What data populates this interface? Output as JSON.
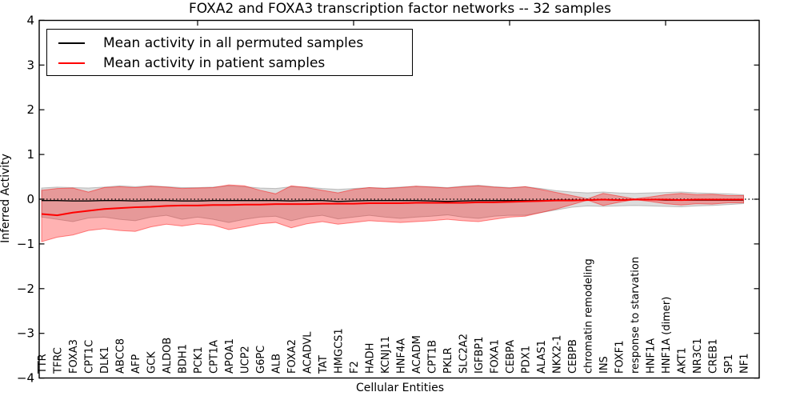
{
  "chart_data": {
    "type": "line",
    "title": "FOXA2 and FOXA3 transcription factor networks -- 32 samples",
    "xlabel": "Cellular Entities",
    "ylabel": "Inferred Activity",
    "ylim": [
      -4,
      4
    ],
    "yticks": [
      4,
      3,
      2,
      1,
      0,
      -1,
      -2,
      -3,
      -4
    ],
    "xticks_top_indices": [
      10,
      20,
      30,
      40
    ],
    "grid": false,
    "legend_position": "upper left",
    "zero_reference_line": {
      "y": 0,
      "style": "dotted",
      "color": "#000000"
    },
    "categories": [
      "TTR",
      "TFRC",
      "FOXA3",
      "CPT1C",
      "DLK1",
      "ABCC8",
      "AFP",
      "GCK",
      "ALDOB",
      "BDH1",
      "PCK1",
      "CPT1A",
      "APOA1",
      "UCP2",
      "G6PC",
      "ALB",
      "FOXA2",
      "ACADVL",
      "TAT",
      "HMGCS1",
      "F2",
      "HADH",
      "KCNJ11",
      "HNF4A",
      "ACADM",
      "CPT1B",
      "PKLR",
      "SLC2A2",
      "IGFBP1",
      "FOXA1",
      "CEBPA",
      "PDX1",
      "ALAS1",
      "NKX2-1",
      "CEBPB",
      "chromatin remodeling",
      "INS",
      "FOXF1",
      "response to starvation",
      "HNF1A",
      "HNF1A (dimer)",
      "AKT1",
      "NR3C1",
      "CREB1",
      "SP1",
      "NF1"
    ],
    "series": [
      {
        "name": "Mean activity in all permuted samples",
        "color": "#000000",
        "values": [
          -0.03,
          -0.03,
          -0.04,
          -0.04,
          -0.03,
          -0.03,
          -0.04,
          -0.03,
          -0.03,
          -0.04,
          -0.04,
          -0.03,
          -0.03,
          -0.03,
          -0.03,
          -0.03,
          -0.04,
          -0.03,
          -0.03,
          -0.05,
          -0.04,
          -0.03,
          -0.03,
          -0.03,
          -0.03,
          -0.04,
          -0.05,
          -0.04,
          -0.03,
          -0.03,
          -0.03,
          -0.03,
          -0.03,
          -0.02,
          -0.02,
          -0.02,
          -0.01,
          -0.02,
          -0.01,
          -0.01,
          -0.02,
          -0.02,
          -0.02,
          -0.02,
          -0.02,
          -0.02
        ],
        "band": {
          "fill": "#808080",
          "upper": [
            0.25,
            0.27,
            0.26,
            0.25,
            0.27,
            0.3,
            0.28,
            0.3,
            0.28,
            0.26,
            0.26,
            0.27,
            0.3,
            0.28,
            0.25,
            0.24,
            0.28,
            0.27,
            0.24,
            0.22,
            0.24,
            0.26,
            0.25,
            0.27,
            0.29,
            0.28,
            0.26,
            0.29,
            0.31,
            0.28,
            0.26,
            0.28,
            0.24,
            0.19,
            0.16,
            0.14,
            0.16,
            0.14,
            0.13,
            0.14,
            0.15,
            0.16,
            0.14,
            0.13,
            0.12,
            0.1
          ],
          "lower": [
            -0.4,
            -0.45,
            -0.5,
            -0.42,
            -0.4,
            -0.45,
            -0.48,
            -0.4,
            -0.36,
            -0.45,
            -0.4,
            -0.45,
            -0.52,
            -0.45,
            -0.4,
            -0.38,
            -0.48,
            -0.4,
            -0.36,
            -0.44,
            -0.4,
            -0.36,
            -0.4,
            -0.43,
            -0.4,
            -0.38,
            -0.35,
            -0.4,
            -0.43,
            -0.38,
            -0.36,
            -0.36,
            -0.3,
            -0.24,
            -0.18,
            -0.15,
            -0.16,
            -0.15,
            -0.14,
            -0.15,
            -0.16,
            -0.17,
            -0.15,
            -0.14,
            -0.12,
            -0.1
          ]
        }
      },
      {
        "name": "Mean activity in patient samples",
        "color": "#ff0000",
        "values": [
          -0.33,
          -0.36,
          -0.3,
          -0.26,
          -0.22,
          -0.2,
          -0.18,
          -0.17,
          -0.15,
          -0.14,
          -0.14,
          -0.13,
          -0.13,
          -0.12,
          -0.12,
          -0.11,
          -0.11,
          -0.11,
          -0.1,
          -0.1,
          -0.1,
          -0.09,
          -0.09,
          -0.09,
          -0.08,
          -0.08,
          -0.08,
          -0.08,
          -0.07,
          -0.07,
          -0.06,
          -0.05,
          -0.04,
          -0.03,
          -0.03,
          -0.02,
          -0.01,
          -0.02,
          -0.01,
          -0.01,
          -0.01,
          -0.02,
          -0.01,
          -0.01,
          -0.01,
          -0.01
        ],
        "band": {
          "fill": "#ff0000",
          "upper": [
            0.2,
            0.24,
            0.25,
            0.16,
            0.26,
            0.28,
            0.26,
            0.29,
            0.27,
            0.24,
            0.25,
            0.26,
            0.32,
            0.3,
            0.2,
            0.12,
            0.3,
            0.26,
            0.2,
            0.14,
            0.22,
            0.26,
            0.24,
            0.26,
            0.29,
            0.27,
            0.25,
            0.28,
            0.3,
            0.27,
            0.25,
            0.28,
            0.22,
            0.15,
            0.08,
            0.01,
            0.13,
            0.07,
            0.01,
            0.05,
            0.1,
            0.13,
            0.1,
            0.11,
            0.08,
            0.08
          ],
          "lower": [
            -0.95,
            -0.85,
            -0.8,
            -0.7,
            -0.66,
            -0.7,
            -0.72,
            -0.62,
            -0.56,
            -0.6,
            -0.55,
            -0.58,
            -0.68,
            -0.62,
            -0.55,
            -0.52,
            -0.64,
            -0.55,
            -0.5,
            -0.56,
            -0.52,
            -0.48,
            -0.5,
            -0.52,
            -0.5,
            -0.48,
            -0.45,
            -0.48,
            -0.5,
            -0.45,
            -0.4,
            -0.38,
            -0.3,
            -0.22,
            -0.12,
            -0.02,
            -0.14,
            -0.07,
            -0.01,
            -0.05,
            -0.1,
            -0.13,
            -0.1,
            -0.11,
            -0.08,
            -0.08
          ]
        }
      }
    ]
  }
}
